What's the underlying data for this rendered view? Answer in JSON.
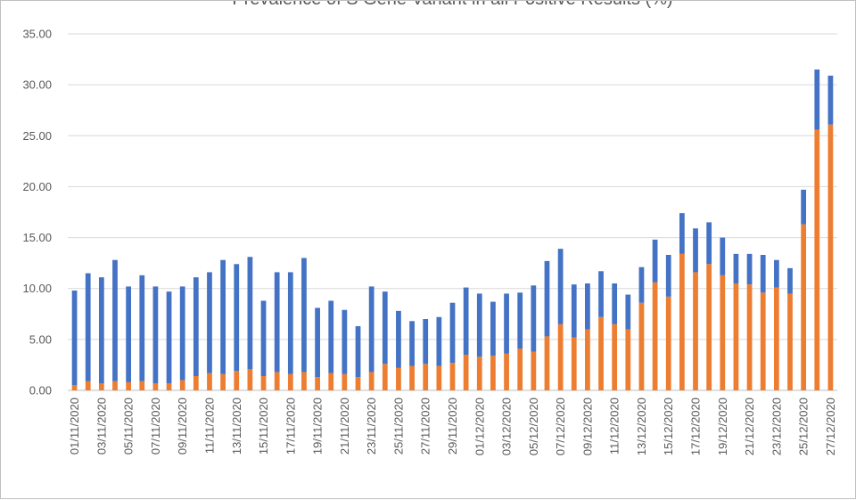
{
  "chart_data": {
    "type": "bar",
    "stacked": true,
    "title": "Prevalence of S Gene Variant in all Positive Results (%)",
    "xlabel": "",
    "ylabel": "",
    "ylim": [
      0,
      35
    ],
    "y_ticks": [
      "0.00",
      "5.00",
      "10.00",
      "15.00",
      "20.00",
      "25.00",
      "30.00",
      "35.00"
    ],
    "grid": true,
    "x_tick_labels": [
      "01/11/2020",
      "03/11/2020",
      "05/11/2020",
      "07/11/2020",
      "09/11/2020",
      "11/11/2020",
      "13/11/2020",
      "15/11/2020",
      "17/11/2020",
      "19/11/2020",
      "21/11/2020",
      "23/11/2020",
      "25/11/2020",
      "27/11/2020",
      "29/11/2020",
      "01/12/2020",
      "03/12/2020",
      "05/12/2020",
      "07/12/2020",
      "09/12/2020",
      "11/12/2020",
      "13/12/2020",
      "15/12/2020",
      "17/12/2020",
      "19/12/2020",
      "21/12/2020",
      "23/12/2020",
      "25/12/2020",
      "27/12/2020"
    ],
    "categories": [
      "01/11/2020",
      "02/11/2020",
      "03/11/2020",
      "04/11/2020",
      "05/11/2020",
      "06/11/2020",
      "07/11/2020",
      "08/11/2020",
      "09/11/2020",
      "10/11/2020",
      "11/11/2020",
      "12/11/2020",
      "13/11/2020",
      "14/11/2020",
      "15/11/2020",
      "16/11/2020",
      "17/11/2020",
      "18/11/2020",
      "19/11/2020",
      "20/11/2020",
      "21/11/2020",
      "22/11/2020",
      "23/11/2020",
      "24/11/2020",
      "25/11/2020",
      "26/11/2020",
      "27/11/2020",
      "28/11/2020",
      "29/11/2020",
      "30/11/2020",
      "01/12/2020",
      "02/12/2020",
      "03/12/2020",
      "04/12/2020",
      "05/12/2020",
      "06/12/2020",
      "07/12/2020",
      "08/12/2020",
      "09/12/2020",
      "10/12/2020",
      "11/12/2020",
      "12/12/2020",
      "13/12/2020",
      "14/12/2020",
      "15/12/2020",
      "16/12/2020",
      "17/12/2020",
      "18/12/2020",
      "19/12/2020",
      "20/12/2020",
      "21/12/2020",
      "22/12/2020",
      "23/12/2020",
      "24/12/2020",
      "25/12/2020",
      "26/12/2020",
      "27/12/2020"
    ],
    "series": [
      {
        "name": "Orange segment",
        "color": "#ED7D31",
        "values": [
          0.5,
          0.9,
          0.7,
          0.9,
          0.8,
          0.9,
          0.7,
          0.7,
          1.0,
          1.4,
          1.7,
          1.6,
          1.9,
          2.1,
          1.4,
          1.8,
          1.6,
          1.8,
          1.3,
          1.7,
          1.6,
          1.3,
          1.8,
          2.6,
          2.2,
          2.4,
          2.6,
          2.4,
          2.7,
          3.5,
          3.3,
          3.4,
          3.6,
          4.1,
          3.8,
          5.3,
          6.5,
          5.2,
          6.0,
          7.2,
          6.5,
          6.0,
          8.6,
          10.6,
          9.2,
          13.4,
          11.6,
          12.4,
          11.3,
          10.5,
          10.4,
          9.6,
          10.1,
          9.5,
          16.3,
          25.6,
          26.1
        ]
      },
      {
        "name": "Blue segment",
        "color": "#4472C4",
        "values": [
          9.3,
          10.6,
          10.4,
          11.9,
          9.4,
          10.4,
          9.5,
          9.0,
          9.2,
          9.7,
          9.9,
          11.2,
          10.5,
          11.0,
          7.4,
          9.8,
          10.0,
          11.2,
          6.8,
          7.1,
          6.3,
          5.0,
          8.4,
          7.1,
          5.6,
          4.4,
          4.4,
          4.8,
          5.9,
          6.6,
          6.2,
          5.3,
          5.9,
          5.5,
          6.5,
          7.4,
          7.4,
          5.2,
          4.5,
          4.5,
          4.0,
          3.4,
          3.5,
          4.2,
          4.1,
          4.0,
          4.3,
          4.1,
          3.7,
          2.9,
          3.0,
          3.7,
          2.7,
          2.5,
          3.4,
          5.9,
          4.8
        ]
      }
    ]
  }
}
